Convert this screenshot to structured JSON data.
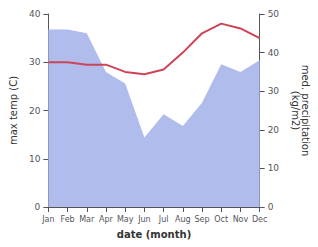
{
  "chart_data": {
    "type": "line",
    "categories": [
      "Jan",
      "Feb",
      "Mar",
      "Apr",
      "May",
      "Jun",
      "Jul",
      "Aug",
      "Sep",
      "Oct",
      "Nov",
      "Dec"
    ],
    "series": [
      {
        "type": "area",
        "axis": "y2",
        "color": "#b0bcec",
        "values": [
          46,
          46,
          45,
          35,
          32,
          18,
          24,
          21,
          27,
          37,
          35,
          38
        ]
      },
      {
        "type": "line",
        "color": "#cc4455",
        "values": [
          30,
          30,
          29.5,
          29.5,
          28,
          27.5,
          28.5,
          32,
          36,
          38,
          37,
          35
        ]
      }
    ],
    "xlabel": "date (month)",
    "ylabel": "max temp (C)",
    "y2label": "med. precipitation\n(kg/m2)",
    "ylim": [
      0,
      40
    ],
    "yticks": [
      0,
      10,
      20,
      30,
      40
    ],
    "y2lim": [
      0,
      50
    ],
    "y2ticks": [
      0,
      10,
      20,
      30,
      40,
      50
    ],
    "grid": false
  }
}
